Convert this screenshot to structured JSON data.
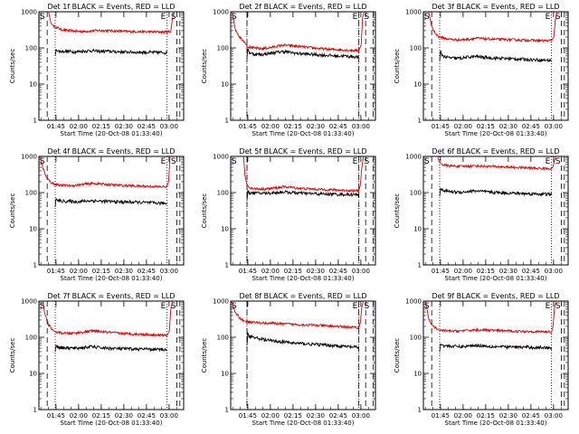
{
  "colors": {
    "events": "#000000",
    "lld": "#e00000",
    "axis": "#000000",
    "background": "#ffffff"
  },
  "chart_data": {
    "type": "line",
    "layout": "3x3 grid",
    "xlabel": "Start Time (20-Oct-08 01:33:40)",
    "ylabel": "Counts/sec",
    "yscale": "log",
    "ylim": [
      1,
      1000
    ],
    "ytick_labels": [
      "1",
      "10",
      "100",
      "1000"
    ],
    "x_range_minutes": [
      0,
      96
    ],
    "xtick_minutes": [
      11.33,
      26.33,
      41.33,
      56.33,
      71.33,
      86.33
    ],
    "xtick_labels": [
      "01:45",
      "02:00",
      "02:15",
      "02:30",
      "02:45",
      "03:00"
    ],
    "markers": {
      "start": "S",
      "end": "E"
    },
    "panels": [
      {
        "title": "Det 1f BLACK = Events, RED = LLD",
        "dash_lines": [
          5.5,
          91.5,
          93.5
        ],
        "dot_lines": [
          10.8,
          85.0
        ],
        "lld": {
          "x": [
            6.5,
            8.0,
            10,
            15,
            20,
            25,
            30,
            35,
            40,
            45,
            50,
            55,
            60,
            65,
            70,
            75,
            80,
            85,
            87.5,
            88.5,
            89.5
          ],
          "y": [
            1000,
            480,
            400,
            320,
            300,
            290,
            285,
            295,
            305,
            300,
            295,
            290,
            285,
            282,
            280,
            278,
            276,
            275,
            290,
            600,
            1000
          ]
        },
        "events": {
          "x": [
            10.8,
            11.4,
            12.2,
            15,
            20,
            25,
            30,
            35,
            40,
            45,
            50,
            55,
            60,
            65,
            70,
            75,
            80,
            85
          ],
          "y": [
            60,
            90,
            82,
            80,
            80,
            78,
            82,
            84,
            80,
            81,
            79,
            78,
            77,
            76,
            76,
            75,
            75,
            74
          ]
        }
      },
      {
        "title": "Det 2f BLACK = Events, RED = LLD",
        "dash_lines": [
          10.8,
          85.0,
          89.5,
          94.5
        ],
        "dot_lines": [
          10.8,
          85.0
        ],
        "lld": {
          "x": [
            1.0,
            3.0,
            6.0,
            9.0,
            11.0,
            15,
            20,
            25,
            30,
            35,
            40,
            45,
            50,
            55,
            60,
            65,
            70,
            75,
            80,
            85,
            86.5,
            87.5,
            88.5
          ],
          "y": [
            1000,
            330,
            200,
            150,
            110,
            100,
            95,
            100,
            110,
            120,
            115,
            110,
            105,
            100,
            95,
            92,
            90,
            88,
            86,
            85,
            120,
            700,
            1000
          ]
        },
        "events": {
          "x": [
            10.8,
            11.4,
            12.2,
            15,
            20,
            25,
            30,
            35,
            40,
            45,
            50,
            55,
            60,
            65,
            70,
            75,
            80,
            85
          ],
          "y": [
            55,
            95,
            75,
            68,
            65,
            70,
            75,
            80,
            75,
            70,
            68,
            66,
            64,
            62,
            60,
            60,
            58,
            56
          ]
        }
      },
      {
        "title": "Det 3f BLACK = Events, RED = LLD",
        "dash_lines": [
          5.5,
          91.5,
          93.5
        ],
        "dot_lines": [
          10.8,
          85.0
        ],
        "lld": {
          "x": [
            3.5,
            5.5,
            8.0,
            10.5,
            15,
            20,
            25,
            30,
            35,
            40,
            45,
            50,
            55,
            60,
            65,
            70,
            75,
            80,
            85,
            86.5,
            87.5,
            88.5
          ],
          "y": [
            1000,
            380,
            250,
            200,
            180,
            170,
            168,
            175,
            185,
            180,
            175,
            172,
            170,
            168,
            165,
            163,
            160,
            158,
            160,
            200,
            600,
            1000
          ]
        },
        "events": {
          "x": [
            10.8,
            11.4,
            12.2,
            15,
            20,
            25,
            30,
            35,
            40,
            45,
            50,
            55,
            60,
            65,
            70,
            75,
            80,
            85
          ],
          "y": [
            45,
            85,
            65,
            55,
            52,
            52,
            56,
            58,
            55,
            53,
            52,
            51,
            50,
            49,
            48,
            47,
            46,
            45
          ]
        }
      },
      {
        "title": "Det 4f BLACK = Events, RED = LLD",
        "dash_lines": [
          5.5,
          91.5,
          93.5
        ],
        "dot_lines": [
          10.8,
          85.0
        ],
        "lld": {
          "x": [
            1.0,
            2.5,
            5.0,
            8.0,
            10.5,
            15,
            20,
            25,
            30,
            35,
            40,
            45,
            50,
            55,
            60,
            65,
            70,
            75,
            80,
            85,
            86.0,
            87.0
          ],
          "y": [
            1000,
            500,
            260,
            190,
            170,
            160,
            155,
            160,
            170,
            180,
            175,
            168,
            162,
            158,
            155,
            152,
            150,
            148,
            145,
            145,
            200,
            1000
          ]
        },
        "events": {
          "x": [
            10.8,
            11.4,
            12.2,
            15,
            20,
            25,
            30,
            35,
            40,
            45,
            50,
            55,
            60,
            65,
            70,
            75,
            80,
            85
          ],
          "y": [
            40,
            68,
            60,
            58,
            57,
            56,
            58,
            60,
            58,
            57,
            56,
            55,
            55,
            54,
            53,
            52,
            51,
            50
          ]
        }
      },
      {
        "title": "Det 5f BLACK = Events, RED = LLD",
        "dash_lines": [
          10.8,
          85.0,
          89.5,
          94.5
        ],
        "dot_lines": [
          10.8,
          85.0
        ],
        "lld": {
          "x": [
            8.5,
            9.5,
            10.5,
            12.0,
            15,
            20,
            25,
            30,
            35,
            40,
            45,
            50,
            55,
            60,
            65,
            70,
            75,
            80,
            85,
            86.0,
            87.0,
            88.0
          ],
          "y": [
            1000,
            300,
            180,
            140,
            130,
            125,
            128,
            135,
            145,
            140,
            132,
            128,
            125,
            122,
            120,
            118,
            116,
            114,
            112,
            160,
            500,
            1000
          ]
        },
        "events": {
          "x": [
            10.8,
            11.4,
            12.2,
            15,
            20,
            25,
            30,
            35,
            40,
            45,
            50,
            55,
            60,
            65,
            70,
            75,
            80,
            85
          ],
          "y": [
            60,
            115,
            100,
            98,
            96,
            97,
            100,
            104,
            100,
            97,
            95,
            93,
            92,
            91,
            90,
            89,
            88,
            87
          ]
        }
      },
      {
        "title": "Det 6f BLACK = Events, RED = LLD",
        "dash_lines": [
          5.5,
          91.5,
          93.5
        ],
        "dot_lines": [
          10.8,
          85.0
        ],
        "lld": {
          "x": [
            9.5,
            10.5,
            12.5,
            15,
            20,
            25,
            30,
            35,
            40,
            45,
            50,
            55,
            60,
            65,
            70,
            75,
            80,
            85,
            86.0,
            87.0,
            88.0
          ],
          "y": [
            1000,
            700,
            600,
            560,
            540,
            530,
            540,
            550,
            540,
            530,
            520,
            510,
            500,
            490,
            480,
            470,
            465,
            460,
            520,
            800,
            1000
          ]
        },
        "events": {
          "x": [
            10.8,
            11.4,
            12.2,
            15,
            20,
            25,
            30,
            35,
            40,
            45,
            50,
            55,
            60,
            65,
            70,
            75,
            80,
            85
          ],
          "y": [
            80,
            130,
            118,
            110,
            105,
            102,
            108,
            112,
            106,
            102,
            100,
            98,
            96,
            94,
            93,
            92,
            91,
            90
          ]
        }
      },
      {
        "title": "Det 7f BLACK = Events, RED = LLD",
        "dash_lines": [
          5.5,
          91.5,
          93.5
        ],
        "dot_lines": [
          10.8,
          85.0
        ],
        "lld": {
          "x": [
            2.5,
            4.0,
            6.5,
            9.0,
            11.0,
            15,
            20,
            25,
            30,
            35,
            40,
            45,
            50,
            55,
            60,
            65,
            70,
            75,
            80,
            85,
            86.5,
            87.5,
            88.5
          ],
          "y": [
            1000,
            420,
            220,
            160,
            140,
            130,
            128,
            132,
            140,
            150,
            145,
            138,
            132,
            128,
            125,
            122,
            120,
            118,
            115,
            113,
            150,
            600,
            1000
          ]
        },
        "events": {
          "x": [
            10.8,
            11.4,
            12.2,
            15,
            20,
            25,
            30,
            35,
            40,
            45,
            50,
            55,
            60,
            65,
            70,
            75,
            80,
            85
          ],
          "y": [
            40,
            60,
            55,
            52,
            50,
            50,
            52,
            55,
            52,
            50,
            49,
            48,
            48,
            47,
            47,
            46,
            46,
            45
          ]
        }
      },
      {
        "title": "Det 8f BLACK = Events, RED = LLD",
        "dash_lines": [
          10.8,
          85.0,
          89.5,
          94.5
        ],
        "dot_lines": [
          10.8,
          85.0
        ],
        "lld": {
          "x": [
            0.5,
            2.5,
            5.5,
            8.5,
            10.5,
            15,
            20,
            25,
            30,
            35,
            40,
            45,
            50,
            55,
            60,
            65,
            70,
            75,
            80,
            85,
            86.0,
            87.0,
            88.0
          ],
          "y": [
            1000,
            550,
            360,
            290,
            270,
            260,
            250,
            245,
            240,
            235,
            230,
            225,
            220,
            215,
            210,
            205,
            200,
            195,
            190,
            185,
            250,
            700,
            1000
          ]
        },
        "events": {
          "x": [
            10.8,
            11.4,
            12.2,
            15,
            20,
            25,
            30,
            35,
            40,
            45,
            50,
            55,
            60,
            65,
            70,
            75,
            80,
            85
          ],
          "y": [
            60,
            130,
            110,
            100,
            90,
            82,
            78,
            75,
            70,
            68,
            66,
            64,
            62,
            60,
            58,
            56,
            54,
            52
          ]
        }
      },
      {
        "title": "Det 9f BLACK = Events, RED = LLD",
        "dash_lines": [
          5.5,
          91.5,
          93.5
        ],
        "dot_lines": [
          10.8,
          85.0
        ],
        "lld": {
          "x": [
            1.5,
            3.5,
            6.0,
            9.0,
            11.0,
            15,
            20,
            25,
            30,
            35,
            40,
            45,
            50,
            55,
            60,
            65,
            70,
            75,
            80,
            85,
            86.0,
            87.0,
            88.0
          ],
          "y": [
            1000,
            320,
            210,
            170,
            155,
            150,
            148,
            150,
            155,
            160,
            158,
            155,
            152,
            150,
            148,
            146,
            145,
            143,
            142,
            140,
            200,
            700,
            1000
          ]
        },
        "events": {
          "x": [
            10.8,
            11.4,
            12.2,
            15,
            20,
            25,
            30,
            35,
            40,
            45,
            50,
            55,
            60,
            65,
            70,
            75,
            80,
            85
          ],
          "y": [
            40,
            65,
            60,
            58,
            56,
            55,
            57,
            60,
            58,
            56,
            55,
            54,
            54,
            53,
            53,
            52,
            52,
            51
          ]
        }
      }
    ]
  }
}
